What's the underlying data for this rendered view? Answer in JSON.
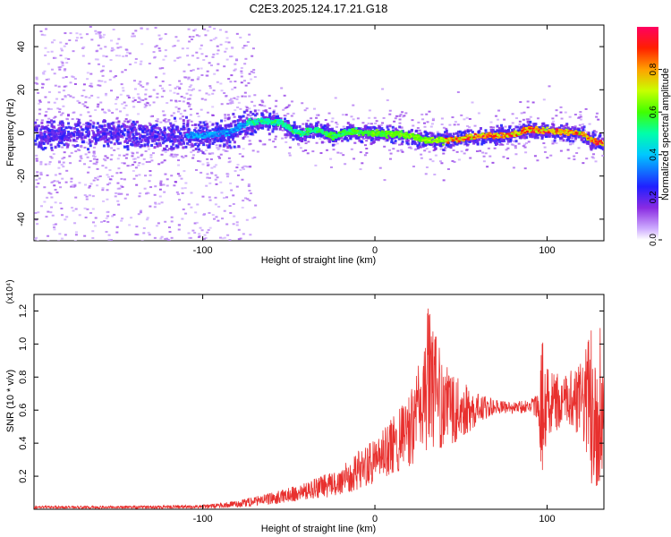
{
  "title": "C2E3.2025.124.17.21.G18",
  "chart_data": [
    {
      "type": "heatmap",
      "xlabel": "Height of straight line (km)",
      "ylabel": "Frequency (Hz)",
      "xlim": [
        -198,
        133
      ],
      "ylim": [
        -50,
        50
      ],
      "xticks": [
        -100,
        0,
        100
      ],
      "yticks": [
        -40,
        -20,
        0,
        20,
        40
      ],
      "colorbar": {
        "label": "Normalized spectral amplitude",
        "range": [
          0,
          1
        ],
        "ticks": [
          0.0,
          0.2,
          0.4,
          0.6,
          0.8
        ],
        "ticklabels": [
          "0.0",
          "0.2",
          "0.4",
          "0.6",
          "0.8"
        ],
        "colormap": "rainbow (magenta → blue → cyan → green → yellow → red)"
      },
      "ridge": {
        "x": [
          -198,
          -150,
          -100,
          -85,
          -75,
          -65,
          -55,
          -45,
          -35,
          -25,
          -15,
          0,
          10,
          20,
          30,
          40,
          50,
          60,
          70,
          80,
          90,
          100,
          110,
          120,
          125,
          133
        ],
        "y": [
          0,
          0,
          -1,
          1,
          5,
          6,
          5,
          0,
          2,
          -1,
          1,
          0,
          0,
          -1,
          -3,
          -3,
          -2,
          -1,
          -1,
          0,
          2,
          1,
          1,
          0,
          -3,
          -5
        ]
      }
    },
    {
      "type": "line",
      "xlabel": "Height of straight line (km)",
      "ylabel": "SNR (10 * v/v)",
      "y_multiplier": "(x10⁴)",
      "xlim": [
        -198,
        133
      ],
      "ylim": [
        0,
        1.3
      ],
      "xticks": [
        -100,
        0,
        100
      ],
      "yticks": [
        0.2,
        0.4,
        0.6,
        0.8,
        1.0,
        1.2
      ],
      "yticklabels": [
        "0.2",
        "0.4",
        "0.6",
        "0.8",
        "1.0",
        "1.2"
      ],
      "color": "#e8302e",
      "envelope": {
        "x": [
          -198,
          -150,
          -100,
          -80,
          -60,
          -40,
          -20,
          -10,
          0,
          10,
          20,
          25,
          30,
          40,
          50,
          60,
          70,
          80,
          90,
          95,
          97,
          100,
          110,
          120,
          125,
          130,
          133
        ],
        "low": [
          0.005,
          0.005,
          0.005,
          0.01,
          0.03,
          0.06,
          0.08,
          0.12,
          0.16,
          0.22,
          0.25,
          0.28,
          0.32,
          0.38,
          0.42,
          0.52,
          0.58,
          0.58,
          0.58,
          0.55,
          0.18,
          0.45,
          0.5,
          0.45,
          0.12,
          0.15,
          0.3
        ],
        "high": [
          0.02,
          0.02,
          0.025,
          0.05,
          0.1,
          0.16,
          0.25,
          0.35,
          0.42,
          0.55,
          0.68,
          0.85,
          1.25,
          0.88,
          0.78,
          0.7,
          0.66,
          0.65,
          0.66,
          0.7,
          1.05,
          0.85,
          0.8,
          0.9,
          1.05,
          1.3,
          0.9
        ]
      }
    }
  ]
}
